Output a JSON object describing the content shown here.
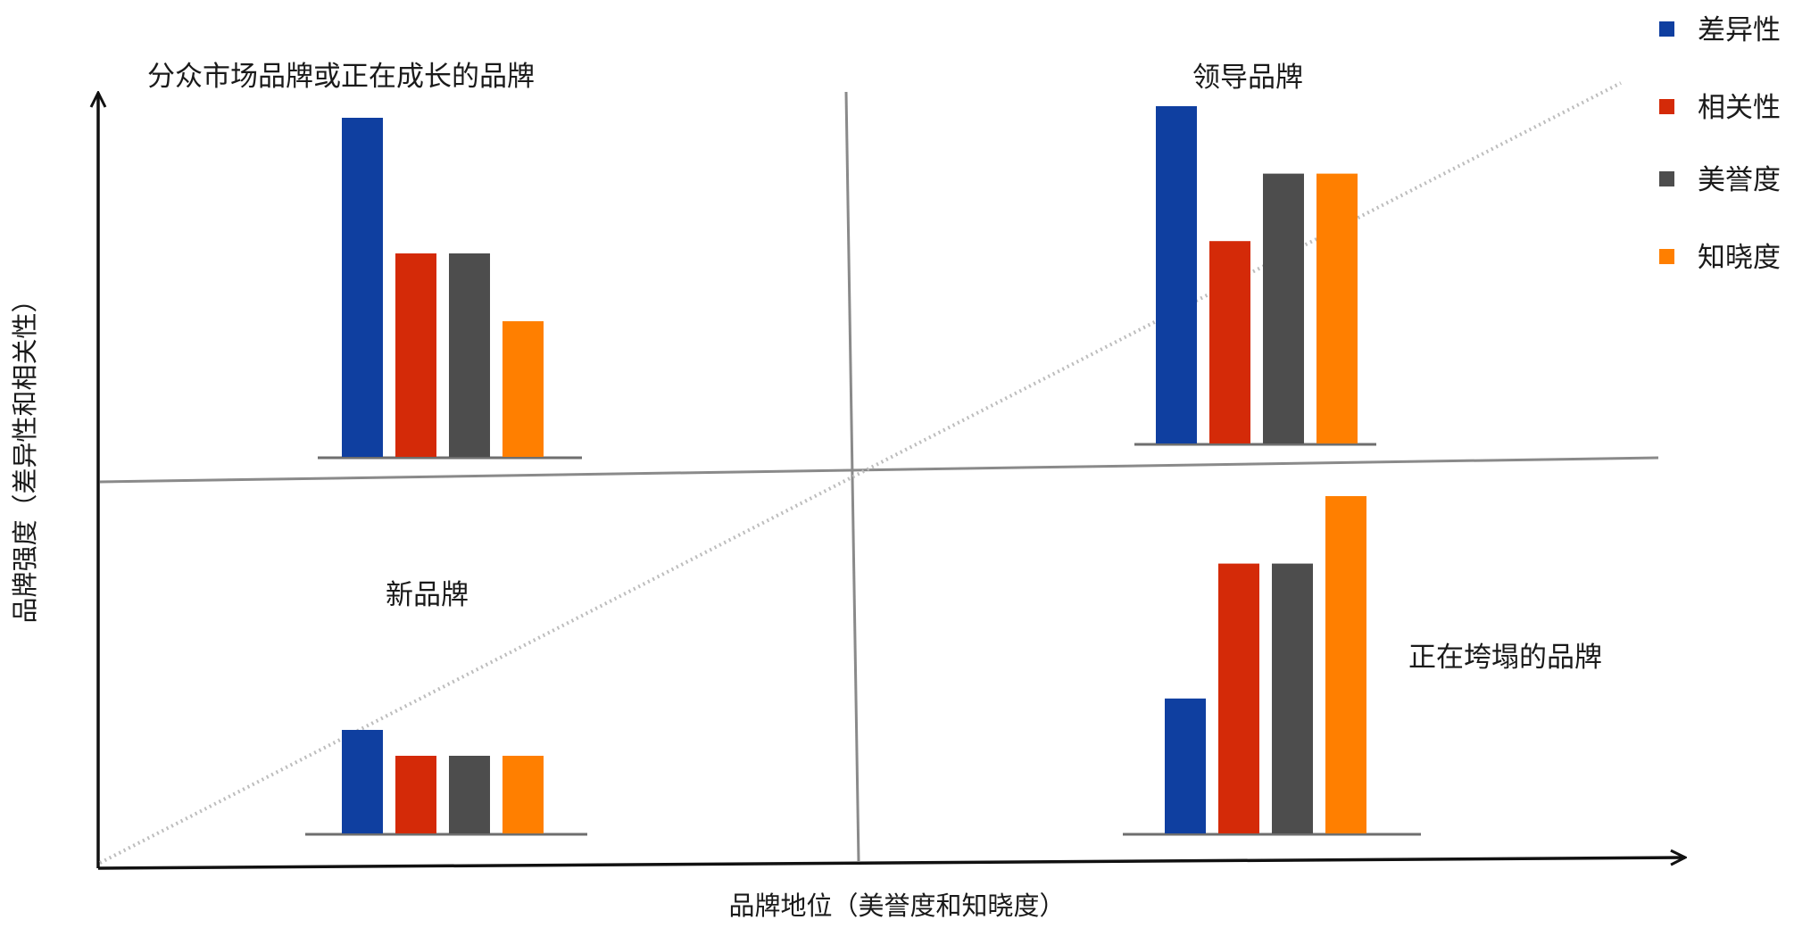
{
  "chart_data": {
    "type": "bar",
    "categories": [
      "差异性",
      "相关性",
      "美誉度",
      "知晓度"
    ],
    "colors": [
      "#0f3fa0",
      "#d42a08",
      "#4d4d4d",
      "#ff7f00"
    ],
    "xlabel": "品牌地位（美誉度和知晓度）",
    "ylabel": "品牌强度（差异性和相关性）",
    "legend_position": "top-right",
    "grid": false,
    "quadrants": [
      {
        "label": "分众市场品牌或正在成长的品牌",
        "position": "top-left",
        "values": [
          100,
          60,
          60,
          40
        ]
      },
      {
        "label": "领导品牌",
        "position": "top-right",
        "values": [
          100,
          60,
          80,
          80
        ]
      },
      {
        "label": "新品牌",
        "position": "bottom-left",
        "values": [
          40,
          30,
          30,
          30
        ]
      },
      {
        "label": "正在垮塌的品牌",
        "position": "bottom-right",
        "values": [
          40,
          80,
          80,
          100
        ]
      }
    ]
  },
  "legend": {
    "items": [
      {
        "label": "差异性",
        "color": "#0f3fa0"
      },
      {
        "label": "相关性",
        "color": "#d42a08"
      },
      {
        "label": "美誉度",
        "color": "#4d4d4d"
      },
      {
        "label": "知晓度",
        "color": "#ff7f00"
      }
    ]
  }
}
